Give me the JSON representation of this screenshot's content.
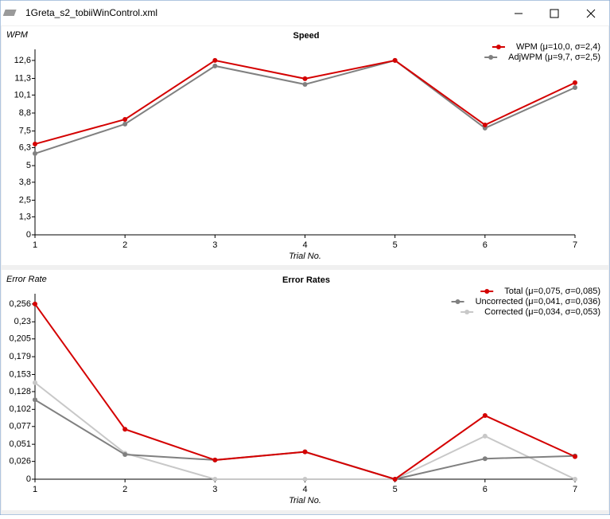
{
  "window": {
    "title": "1Greta_s2_tobiiWinControl.xml"
  },
  "chart_data": [
    {
      "type": "line",
      "title": "Speed",
      "y_label": "WPM",
      "x_label": "Trial No.",
      "x": [
        1,
        2,
        3,
        4,
        5,
        6,
        7
      ],
      "xlim": [
        1,
        7
      ],
      "xticks": [
        1,
        2,
        3,
        4,
        5,
        6,
        7
      ],
      "ylim": [
        0,
        13.4
      ],
      "yticks": [
        0,
        {
          "value": 1.3,
          "label": "1,3"
        },
        {
          "value": 2.5,
          "label": "2,5"
        },
        {
          "value": 3.8,
          "label": "3,8"
        },
        5,
        {
          "value": 6.3,
          "label": "6,3"
        },
        {
          "value": 7.5,
          "label": "7,5"
        },
        {
          "value": 8.8,
          "label": "8,8"
        },
        {
          "value": 10.1,
          "label": "10,1"
        },
        {
          "value": 11.3,
          "label": "11,3"
        },
        {
          "value": 12.6,
          "label": "12,6"
        }
      ],
      "series": [
        {
          "name": "WPM (μ=10,0, σ=2,4)",
          "color": "#d40000",
          "values": [
            6.56,
            8.34,
            12.6,
            11.28,
            12.6,
            7.94,
            10.99
          ]
        },
        {
          "name": "AdjWPM (μ=9,7, σ=2,5)",
          "color": "#808080",
          "values": [
            5.87,
            8.0,
            12.2,
            10.87,
            12.6,
            7.71,
            10.64
          ]
        }
      ]
    },
    {
      "type": "line",
      "title": "Error Rates",
      "y_label": "Error Rate",
      "x_label": "Trial No.",
      "x": [
        1,
        2,
        3,
        4,
        5,
        6,
        7
      ],
      "xlim": [
        1,
        7
      ],
      "xticks": [
        1,
        2,
        3,
        4,
        5,
        6,
        7
      ],
      "ylim": [
        0,
        0.271
      ],
      "yticks": [
        0,
        {
          "value": 0.026,
          "label": "0,026"
        },
        {
          "value": 0.051,
          "label": "0,051"
        },
        {
          "value": 0.077,
          "label": "0,077"
        },
        {
          "value": 0.102,
          "label": "0,102"
        },
        {
          "value": 0.128,
          "label": "0,128"
        },
        {
          "value": 0.153,
          "label": "0,153"
        },
        {
          "value": 0.179,
          "label": "0,179"
        },
        {
          "value": 0.205,
          "label": "0,205"
        },
        {
          "value": 0.23,
          "label": "0,23"
        },
        {
          "value": 0.256,
          "label": "0,256"
        }
      ],
      "series": [
        {
          "name": "Total (μ=0,075, σ=0,085)",
          "color": "#d40000",
          "values": [
            0.256,
            0.073,
            0.028,
            0.04,
            0,
            0.093,
            0.033
          ]
        },
        {
          "name": "Uncorrected (μ=0,041, σ=0,036)",
          "color": "#808080",
          "values": [
            0.116,
            0.036,
            0.028,
            0.04,
            0,
            0.03,
            0.034
          ]
        },
        {
          "name": "Corrected (μ=0,034, σ=0,053)",
          "color": "#c8c8c8",
          "values": [
            0.141,
            0.038,
            0,
            0,
            0,
            0.063,
            0
          ]
        }
      ]
    }
  ]
}
